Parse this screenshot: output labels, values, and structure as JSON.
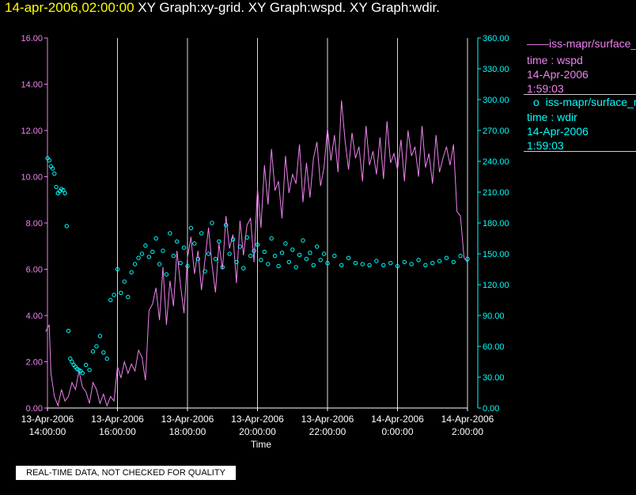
{
  "header": {
    "timestamp": "14-apr-2006,02:00:00",
    "graph_titles": "XY Graph:xy-grid.  XY Graph:wspd.  XY Graph:wdir."
  },
  "legend": {
    "wspd": {
      "name": "iss-mapr/surface_m",
      "line1": "time : wspd",
      "line2": "14-Apr-2006",
      "line3": "1:59:03"
    },
    "wdir": {
      "name": "iss-mapr/surface_m",
      "line1": "time : wdir",
      "line2": "14-Apr-2006",
      "line3": "1:59:03"
    }
  },
  "footer_note": "REAL-TIME DATA, NOT CHECKED FOR QUALITY",
  "colors": {
    "wspd": "#ee82ee",
    "wdir": "#00ffff",
    "grid": "#dddddd",
    "background": "#000000"
  },
  "chart_data": {
    "type": "line",
    "xlabel": "Time",
    "x_ticks": [
      {
        "hour": 14,
        "label1": "13-Apr-2006",
        "label2": "14:00:00"
      },
      {
        "hour": 16,
        "label1": "13-Apr-2006",
        "label2": "16:00:00"
      },
      {
        "hour": 18,
        "label1": "13-Apr-2006",
        "label2": "18:00:00"
      },
      {
        "hour": 20,
        "label1": "13-Apr-2006",
        "label2": "20:00:00"
      },
      {
        "hour": 22,
        "label1": "13-Apr-2006",
        "label2": "22:00:00"
      },
      {
        "hour": 24,
        "label1": "14-Apr-2006",
        "label2": "0:00:00"
      },
      {
        "hour": 26,
        "label1": "14-Apr-2006",
        "label2": "2:00:00"
      }
    ],
    "xlim": [
      14,
      26
    ],
    "grid": true,
    "left_axis": {
      "range": [
        0,
        16
      ],
      "ticks": [
        "0.00",
        "2.00",
        "4.00",
        "6.00",
        "8.00",
        "10.00",
        "12.00",
        "14.00",
        "16.00"
      ]
    },
    "right_axis": {
      "range": [
        0,
        360
      ],
      "ticks": [
        "0.00",
        "30.00",
        "60.00",
        "90.00",
        "120.00",
        "150.00",
        "180.00",
        "210.00",
        "240.00",
        "270.00",
        "300.00",
        "330.00",
        "360.00"
      ]
    },
    "series": [
      {
        "name": "wspd",
        "axis": "left",
        "style": "line",
        "x": [
          13.95,
          14.05,
          14.1,
          14.2,
          14.3,
          14.4,
          14.5,
          14.6,
          14.7,
          14.8,
          14.9,
          15.0,
          15.1,
          15.2,
          15.3,
          15.4,
          15.5,
          15.6,
          15.7,
          15.8,
          15.9,
          16.0,
          16.1,
          16.2,
          16.3,
          16.4,
          16.5,
          16.6,
          16.7,
          16.8,
          16.9,
          17.0,
          17.1,
          17.2,
          17.3,
          17.4,
          17.5,
          17.6,
          17.7,
          17.8,
          17.9,
          18.0,
          18.1,
          18.2,
          18.3,
          18.4,
          18.5,
          18.6,
          18.7,
          18.8,
          18.9,
          19.0,
          19.1,
          19.2,
          19.3,
          19.4,
          19.5,
          19.6,
          19.7,
          19.8,
          19.9,
          20.0,
          20.1,
          20.2,
          20.3,
          20.4,
          20.5,
          20.6,
          20.7,
          20.8,
          20.9,
          21.0,
          21.1,
          21.2,
          21.3,
          21.4,
          21.5,
          21.6,
          21.7,
          21.8,
          21.9,
          22.0,
          22.1,
          22.2,
          22.3,
          22.4,
          22.5,
          22.6,
          22.7,
          22.8,
          22.9,
          23.0,
          23.1,
          23.2,
          23.3,
          23.4,
          23.5,
          23.6,
          23.7,
          23.8,
          23.9,
          24.0,
          24.1,
          24.2,
          24.3,
          24.4,
          24.5,
          24.6,
          24.7,
          24.8,
          24.9,
          25.0,
          25.1,
          25.2,
          25.3,
          25.4,
          25.5,
          25.6,
          25.7,
          25.8,
          25.9,
          26.0
        ],
        "y": [
          3.3,
          3.6,
          1.5,
          0.5,
          0.1,
          0.8,
          0.3,
          0.5,
          1.1,
          0.8,
          1.6,
          0.9,
          0.7,
          0.2,
          1.1,
          0.8,
          0.2,
          0.6,
          0.1,
          0.5,
          0.3,
          1.8,
          1.3,
          2.0,
          1.5,
          1.9,
          1.6,
          2.5,
          2.2,
          1.2,
          4.2,
          4.5,
          5.2,
          3.8,
          6.1,
          3.6,
          5.5,
          4.4,
          6.8,
          5.3,
          4.1,
          6.5,
          7.4,
          5.8,
          6.8,
          5.1,
          6.4,
          7.8,
          6.2,
          5.0,
          7.1,
          6.0,
          8.3,
          6.9,
          7.5,
          5.4,
          8.1,
          6.6,
          7.9,
          8.2,
          6.3,
          9.5,
          7.8,
          10.5,
          8.8,
          11.2,
          9.4,
          9.8,
          8.2,
          10.9,
          9.3,
          10.1,
          9.7,
          11.4,
          8.9,
          10.6,
          9.1,
          10.8,
          11.5,
          9.6,
          10.4,
          12.1,
          10.7,
          11.8,
          10.2,
          13.3,
          11.6,
          10.3,
          11.9,
          10.8,
          11.3,
          9.8,
          12.2,
          10.5,
          11.1,
          10.1,
          11.7,
          9.9,
          12.4,
          10.6,
          11.0,
          10.3,
          11.6,
          9.8,
          12.0,
          10.9,
          11.3,
          10.0,
          12.2,
          10.4,
          11.0,
          9.7,
          11.8,
          10.2,
          10.8,
          11.3,
          10.5,
          11.4,
          8.5,
          8.3,
          6.5,
          6.3
        ]
      },
      {
        "name": "wdir",
        "axis": "right",
        "style": "scatter",
        "x": [
          14.0,
          14.05,
          14.1,
          14.15,
          14.2,
          14.25,
          14.3,
          14.35,
          14.4,
          14.45,
          14.5,
          14.55,
          14.6,
          14.65,
          14.7,
          14.75,
          14.8,
          14.85,
          14.9,
          14.95,
          15.0,
          15.1,
          15.2,
          15.3,
          15.4,
          15.5,
          15.6,
          15.7,
          15.8,
          15.9,
          16.0,
          16.1,
          16.2,
          16.3,
          16.4,
          16.5,
          16.6,
          16.7,
          16.8,
          16.9,
          17.0,
          17.1,
          17.2,
          17.3,
          17.4,
          17.5,
          17.6,
          17.7,
          17.8,
          17.9,
          18.0,
          18.1,
          18.2,
          18.3,
          18.4,
          18.5,
          18.6,
          18.7,
          18.8,
          18.9,
          19.0,
          19.1,
          19.2,
          19.3,
          19.4,
          19.5,
          19.6,
          19.7,
          19.8,
          19.9,
          20.0,
          20.1,
          20.2,
          20.3,
          20.4,
          20.5,
          20.6,
          20.7,
          20.8,
          20.9,
          21.0,
          21.1,
          21.2,
          21.3,
          21.4,
          21.5,
          21.6,
          21.7,
          21.8,
          21.9,
          22.0,
          22.2,
          22.4,
          22.6,
          22.8,
          23.0,
          23.2,
          23.4,
          23.6,
          23.8,
          24.0,
          24.2,
          24.4,
          24.6,
          24.8,
          25.0,
          25.2,
          25.4,
          25.6,
          25.8,
          26.0
        ],
        "y": [
          243,
          241,
          235,
          233,
          228,
          215,
          209,
          211,
          213,
          212,
          209,
          177,
          75,
          48,
          45,
          42,
          40,
          38,
          37,
          36,
          34,
          42,
          37,
          55,
          60,
          70,
          54,
          48,
          105,
          110,
          135,
          112,
          123,
          108,
          132,
          140,
          146,
          150,
          158,
          147,
          152,
          165,
          140,
          153,
          130,
          170,
          148,
          162,
          141,
          156,
          138,
          175,
          160,
          145,
          170,
          133,
          150,
          180,
          145,
          162,
          137,
          178,
          150,
          164,
          142,
          157,
          136,
          166,
          148,
          153,
          159,
          144,
          152,
          140,
          165,
          148,
          138,
          151,
          160,
          142,
          154,
          137,
          149,
          163,
          145,
          151,
          139,
          157,
          144,
          150,
          141,
          148,
          139,
          146,
          141,
          140,
          139,
          143,
          139,
          141,
          138,
          142,
          140,
          144,
          139,
          141,
          143,
          146,
          142,
          148,
          145
        ]
      }
    ]
  }
}
